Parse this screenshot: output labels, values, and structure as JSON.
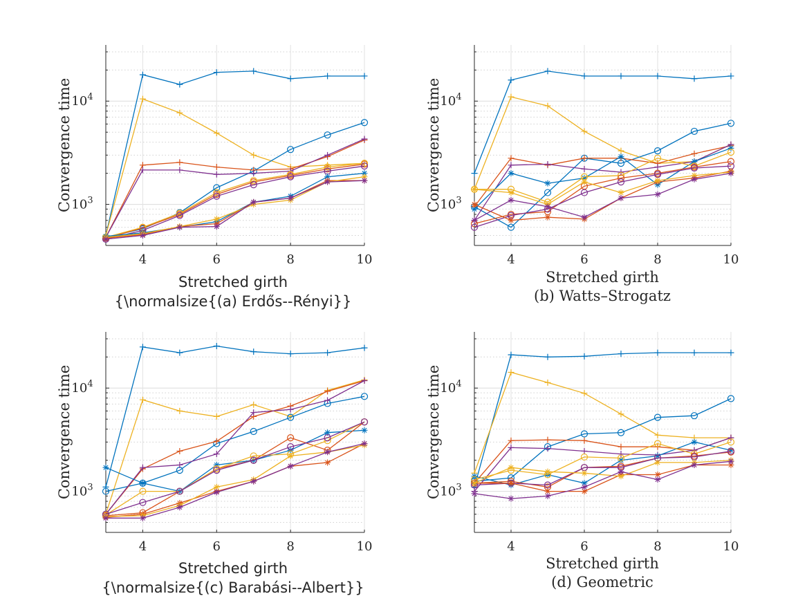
{
  "figure": {
    "colors": [
      "#0072BD",
      "#D95319",
      "#EDB120",
      "#7E2F8E"
    ]
  },
  "chart_data": [
    {
      "type": "line",
      "panel": "a",
      "ylabel": "Convergence time",
      "xlabel": "Stretched girth",
      "caption": "{\\normalsize{(a) Erdős--Rényi}}",
      "caption_font": "sans",
      "xlim": [
        3,
        10
      ],
      "ylim": [
        400,
        35000
      ],
      "yscale": "log",
      "xticks": [
        4,
        6,
        8,
        10
      ],
      "yticks": [
        1000,
        10000
      ],
      "ytick_labels": [
        "10^3",
        "10^4"
      ],
      "grid": true,
      "x": [
        3,
        4,
        5,
        6,
        7,
        8,
        9,
        10
      ],
      "series": [
        {
          "color": "#0072BD",
          "marker": "+",
          "values": [
            500,
            18000,
            14500,
            19000,
            19500,
            16500,
            17500,
            17500
          ]
        },
        {
          "color": "#EDB120",
          "marker": "+",
          "values": [
            500,
            10500,
            7700,
            4900,
            3000,
            2300,
            2400,
            2500
          ]
        },
        {
          "color": "#0072BD",
          "marker": "o",
          "values": [
            480,
            580,
            830,
            1450,
            2100,
            3400,
            4700,
            6200
          ]
        },
        {
          "color": "#D95319",
          "marker": "+",
          "values": [
            480,
            2400,
            2550,
            2300,
            2150,
            2200,
            2900,
            4200
          ]
        },
        {
          "color": "#7E2F8E",
          "marker": "+",
          "values": [
            480,
            2150,
            2150,
            1950,
            2000,
            2100,
            3000,
            4300
          ]
        },
        {
          "color": "#D95319",
          "marker": "o",
          "values": [
            470,
            590,
            800,
            1250,
            1650,
            1900,
            2200,
            2450
          ]
        },
        {
          "color": "#EDB120",
          "marker": "o",
          "values": [
            480,
            600,
            820,
            1300,
            1700,
            1950,
            2300,
            2500
          ]
        },
        {
          "color": "#7E2F8E",
          "marker": "o",
          "values": [
            460,
            560,
            780,
            1200,
            1550,
            1850,
            2100,
            2350
          ]
        },
        {
          "color": "#0072BD",
          "marker": "*",
          "values": [
            490,
            530,
            600,
            680,
            1050,
            1200,
            1850,
            2000
          ]
        },
        {
          "color": "#D95319",
          "marker": "*",
          "values": [
            470,
            510,
            610,
            650,
            1050,
            1150,
            1700,
            1700
          ]
        },
        {
          "color": "#EDB120",
          "marker": "*",
          "values": [
            480,
            520,
            610,
            720,
            1000,
            1100,
            1650,
            1850
          ]
        },
        {
          "color": "#7E2F8E",
          "marker": "*",
          "values": [
            460,
            500,
            600,
            610,
            1050,
            1150,
            1650,
            1700
          ]
        }
      ]
    },
    {
      "type": "line",
      "panel": "b",
      "ylabel": "Convergence time",
      "xlabel": "Stretched girth",
      "caption": "(b) Watts–Strogatz",
      "caption_font": "serif",
      "xlim": [
        3,
        10
      ],
      "ylim": [
        400,
        35000
      ],
      "yscale": "log",
      "xticks": [
        4,
        6,
        8,
        10
      ],
      "yticks": [
        1000,
        10000
      ],
      "ytick_labels": [
        "10^3",
        "10^4"
      ],
      "grid": true,
      "x": [
        3,
        4,
        5,
        6,
        7,
        8,
        9,
        10
      ],
      "series": [
        {
          "color": "#0072BD",
          "marker": "+",
          "values": [
            2000,
            16000,
            19500,
            17500,
            17500,
            17500,
            16500,
            17500
          ]
        },
        {
          "color": "#EDB120",
          "marker": "+",
          "values": [
            1400,
            11000,
            9000,
            5100,
            3300,
            2500,
            2600,
            3800
          ]
        },
        {
          "color": "#0072BD",
          "marker": "o",
          "values": [
            950,
            600,
            1300,
            2800,
            2500,
            3300,
            5100,
            6100
          ]
        },
        {
          "color": "#D95319",
          "marker": "+",
          "values": [
            950,
            2800,
            2400,
            2800,
            2800,
            2500,
            3100,
            3700
          ]
        },
        {
          "color": "#7E2F8E",
          "marker": "+",
          "values": [
            700,
            2400,
            2450,
            2200,
            2050,
            2300,
            2600,
            3800
          ]
        },
        {
          "color": "#0072BD",
          "marker": "*",
          "values": [
            900,
            2000,
            1600,
            1800,
            2900,
            1550,
            2600,
            3500
          ]
        },
        {
          "color": "#EDB120",
          "marker": "o",
          "values": [
            1400,
            1400,
            1050,
            1850,
            1900,
            2800,
            2350,
            3200
          ]
        },
        {
          "color": "#D95319",
          "marker": "o",
          "values": [
            650,
            800,
            850,
            1500,
            1800,
            2000,
            2300,
            2600
          ]
        },
        {
          "color": "#7E2F8E",
          "marker": "o",
          "values": [
            600,
            780,
            900,
            1300,
            1650,
            1950,
            2250,
            2350
          ]
        },
        {
          "color": "#D95319",
          "marker": "*",
          "values": [
            1000,
            700,
            750,
            720,
            1150,
            1650,
            1800,
            2100
          ]
        },
        {
          "color": "#EDB120",
          "marker": "*",
          "values": [
            1400,
            1300,
            1000,
            1650,
            1300,
            1700,
            1900,
            2050
          ]
        },
        {
          "color": "#7E2F8E",
          "marker": "*",
          "values": [
            700,
            1100,
            950,
            750,
            1150,
            1250,
            1750,
            2000
          ]
        }
      ]
    },
    {
      "type": "line",
      "panel": "c",
      "ylabel": "Convergence time",
      "xlabel": "Stretched girth",
      "caption": "{\\normalsize{(c) Barabási--Albert}}",
      "caption_font": "sans",
      "xlim": [
        3,
        10
      ],
      "ylim": [
        400,
        35000
      ],
      "yscale": "log",
      "xticks": [
        4,
        6,
        8,
        10
      ],
      "yticks": [
        1000,
        10000
      ],
      "ytick_labels": [
        "10^3",
        "10^4"
      ],
      "grid": true,
      "x": [
        3,
        4,
        5,
        6,
        7,
        8,
        9,
        10
      ],
      "series": [
        {
          "color": "#0072BD",
          "marker": "+",
          "values": [
            1100,
            25000,
            22000,
            25500,
            22500,
            21500,
            22000,
            24500
          ]
        },
        {
          "color": "#EDB120",
          "marker": "+",
          "values": [
            600,
            7700,
            6000,
            5300,
            6900,
            5300,
            9500,
            12000
          ]
        },
        {
          "color": "#0072BD",
          "marker": "o",
          "values": [
            1000,
            1200,
            1600,
            2900,
            3800,
            5200,
            7100,
            8300
          ]
        },
        {
          "color": "#D95319",
          "marker": "+",
          "values": [
            600,
            1650,
            2450,
            3050,
            5300,
            6700,
            9300,
            11800
          ]
        },
        {
          "color": "#7E2F8E",
          "marker": "+",
          "values": [
            600,
            1700,
            1800,
            2300,
            5800,
            6200,
            7600,
            11800
          ]
        },
        {
          "color": "#0072BD",
          "marker": "*",
          "values": [
            1700,
            1200,
            1000,
            1800,
            2000,
            2500,
            3700,
            3900
          ]
        },
        {
          "color": "#D95319",
          "marker": "o",
          "values": [
            580,
            620,
            1000,
            1650,
            2000,
            3300,
            2500,
            4700
          ]
        },
        {
          "color": "#EDB120",
          "marker": "o",
          "values": [
            590,
            1000,
            1000,
            1650,
            2200,
            2300,
            3100,
            4700
          ]
        },
        {
          "color": "#7E2F8E",
          "marker": "o",
          "values": [
            600,
            780,
            1000,
            1600,
            2000,
            2700,
            3300,
            4700
          ]
        },
        {
          "color": "#D95319",
          "marker": "*",
          "values": [
            560,
            600,
            770,
            1000,
            1250,
            1750,
            1900,
            2900
          ]
        },
        {
          "color": "#EDB120",
          "marker": "*",
          "values": [
            570,
            580,
            730,
            1100,
            1300,
            2200,
            2400,
            2800
          ]
        },
        {
          "color": "#7E2F8E",
          "marker": "*",
          "values": [
            550,
            550,
            700,
            980,
            1250,
            1750,
            2400,
            2900
          ]
        }
      ]
    },
    {
      "type": "line",
      "panel": "d",
      "ylabel": "Convergence time",
      "xlabel": "Stretched girth",
      "caption": "(d) Geometric",
      "caption_font": "serif",
      "xlim": [
        3,
        10
      ],
      "ylim": [
        400,
        35000
      ],
      "yscale": "log",
      "xticks": [
        4,
        6,
        8,
        10
      ],
      "yticks": [
        1000,
        10000
      ],
      "ytick_labels": [
        "10^3",
        "10^4"
      ],
      "grid": true,
      "x": [
        3,
        4,
        5,
        6,
        7,
        8,
        9,
        10
      ],
      "series": [
        {
          "color": "#0072BD",
          "marker": "+",
          "values": [
            1100,
            21000,
            20000,
            20300,
            21500,
            22000,
            22000,
            22000
          ]
        },
        {
          "color": "#EDB120",
          "marker": "+",
          "values": [
            1500,
            14200,
            11300,
            8900,
            5600,
            3500,
            3300,
            3300
          ]
        },
        {
          "color": "#0072BD",
          "marker": "o",
          "values": [
            1250,
            1350,
            2700,
            3600,
            3700,
            5200,
            5400,
            7900
          ]
        },
        {
          "color": "#D95319",
          "marker": "+",
          "values": [
            1200,
            3100,
            3150,
            3100,
            2700,
            2700,
            2500,
            3300
          ]
        },
        {
          "color": "#7E2F8E",
          "marker": "+",
          "values": [
            1000,
            2650,
            2600,
            2450,
            2300,
            2250,
            2500,
            3300
          ]
        },
        {
          "color": "#0072BD",
          "marker": "*",
          "values": [
            1400,
            1150,
            1450,
            1200,
            2000,
            2200,
            3000,
            2500
          ]
        },
        {
          "color": "#EDB120",
          "marker": "o",
          "values": [
            1300,
            1600,
            1450,
            2150,
            2100,
            2900,
            2300,
            3000
          ]
        },
        {
          "color": "#D95319",
          "marker": "o",
          "values": [
            1200,
            1250,
            1100,
            1700,
            1750,
            2100,
            2200,
            2400
          ]
        },
        {
          "color": "#7E2F8E",
          "marker": "o",
          "values": [
            1150,
            1200,
            1150,
            1700,
            1700,
            2100,
            2150,
            2450
          ]
        },
        {
          "color": "#D95319",
          "marker": "*",
          "values": [
            1200,
            1200,
            1000,
            1000,
            1450,
            1450,
            1800,
            1800
          ]
        },
        {
          "color": "#EDB120",
          "marker": "*",
          "values": [
            1200,
            1700,
            1550,
            1500,
            1400,
            1900,
            1900,
            2000
          ]
        },
        {
          "color": "#7E2F8E",
          "marker": "*",
          "values": [
            950,
            850,
            900,
            1100,
            1550,
            1300,
            1800,
            1950
          ]
        }
      ]
    }
  ]
}
